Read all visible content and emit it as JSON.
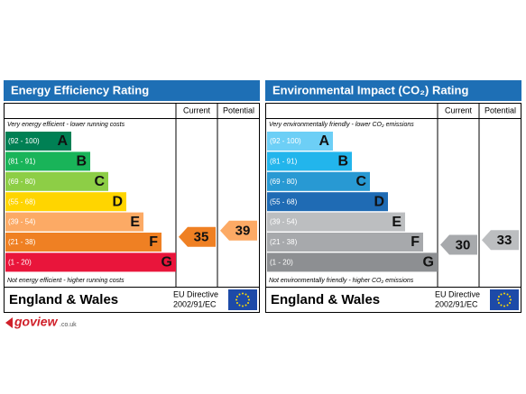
{
  "panels": [
    {
      "title": "Energy Efficiency Rating",
      "column_headers": [
        "Current",
        "Potential"
      ],
      "top_note": "Very energy efficient - lower running costs",
      "bottom_note": "Not energy efficient - higher running costs",
      "bands": [
        {
          "range": "(92 - 100)",
          "letter": "A"
        },
        {
          "range": "(81 - 91)",
          "letter": "B"
        },
        {
          "range": "(69 - 80)",
          "letter": "C"
        },
        {
          "range": "(55 - 68)",
          "letter": "D"
        },
        {
          "range": "(39 - 54)",
          "letter": "E"
        },
        {
          "range": "(21 - 38)",
          "letter": "F"
        },
        {
          "range": "(1 - 20)",
          "letter": "G"
        }
      ],
      "current": 35,
      "potential": 39,
      "region": "England & Wales",
      "directive": "EU Directive",
      "directive_code": "2002/91/EC"
    },
    {
      "title": "Environmental Impact (CO₂) Rating",
      "column_headers": [
        "Current",
        "Potential"
      ],
      "top_note": "Very environmentally friendly - lower CO₂ emissions",
      "bottom_note": "Not environmentally friendly - higher CO₂ emissions",
      "bands": [
        {
          "range": "(92 - 100)",
          "letter": "A"
        },
        {
          "range": "(81 - 91)",
          "letter": "B"
        },
        {
          "range": "(69 - 80)",
          "letter": "C"
        },
        {
          "range": "(55 - 68)",
          "letter": "D"
        },
        {
          "range": "(39 - 54)",
          "letter": "E"
        },
        {
          "range": "(21 - 38)",
          "letter": "F"
        },
        {
          "range": "(1 - 20)",
          "letter": "G"
        }
      ],
      "current": 30,
      "potential": 33,
      "region": "England & Wales",
      "directive": "EU Directive",
      "directive_code": "2002/91/EC"
    }
  ],
  "logo": {
    "name": "goview",
    "suffix": ".co.uk"
  }
}
